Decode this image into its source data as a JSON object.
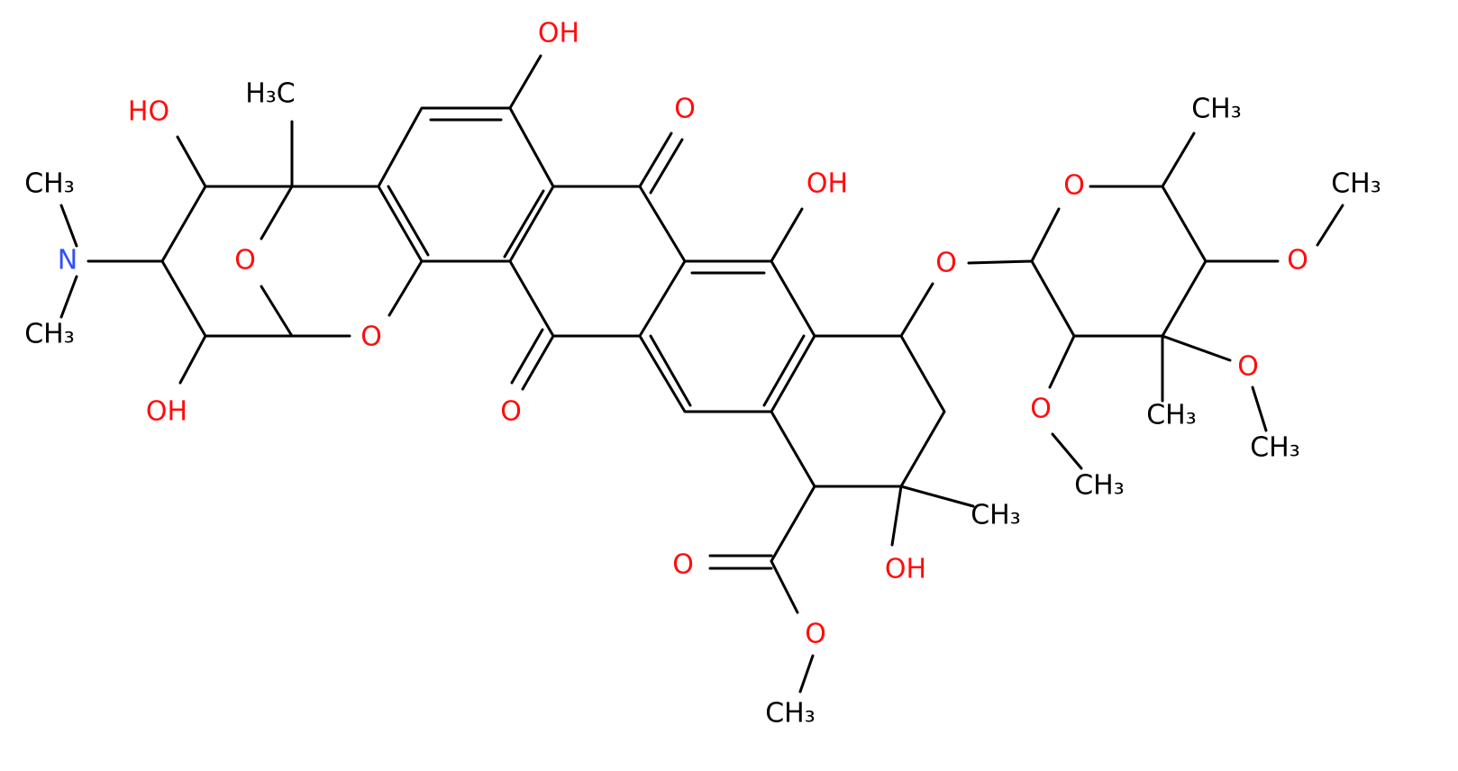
{
  "atoms": [
    {
      "label": "OH"
    },
    {
      "label": "HO"
    },
    {
      "label": "H₃C"
    },
    {
      "label": "CH₃"
    },
    {
      "label": "N"
    },
    {
      "label": "CH₃"
    },
    {
      "label": "O"
    },
    {
      "label": "O"
    },
    {
      "label": "OH"
    },
    {
      "label": "O"
    },
    {
      "label": "O"
    },
    {
      "label": "OH"
    },
    {
      "label": "O"
    },
    {
      "label": "O"
    },
    {
      "label": "CH₃"
    },
    {
      "label": "CH₃"
    },
    {
      "label": "O"
    },
    {
      "label": "O"
    },
    {
      "label": "CH₃"
    },
    {
      "label": "CH₃"
    },
    {
      "label": "O"
    },
    {
      "label": "CH₃"
    },
    {
      "label": "CH₃"
    },
    {
      "label": "OH"
    },
    {
      "label": "O"
    },
    {
      "label": "O"
    },
    {
      "label": "CH₃"
    }
  ]
}
